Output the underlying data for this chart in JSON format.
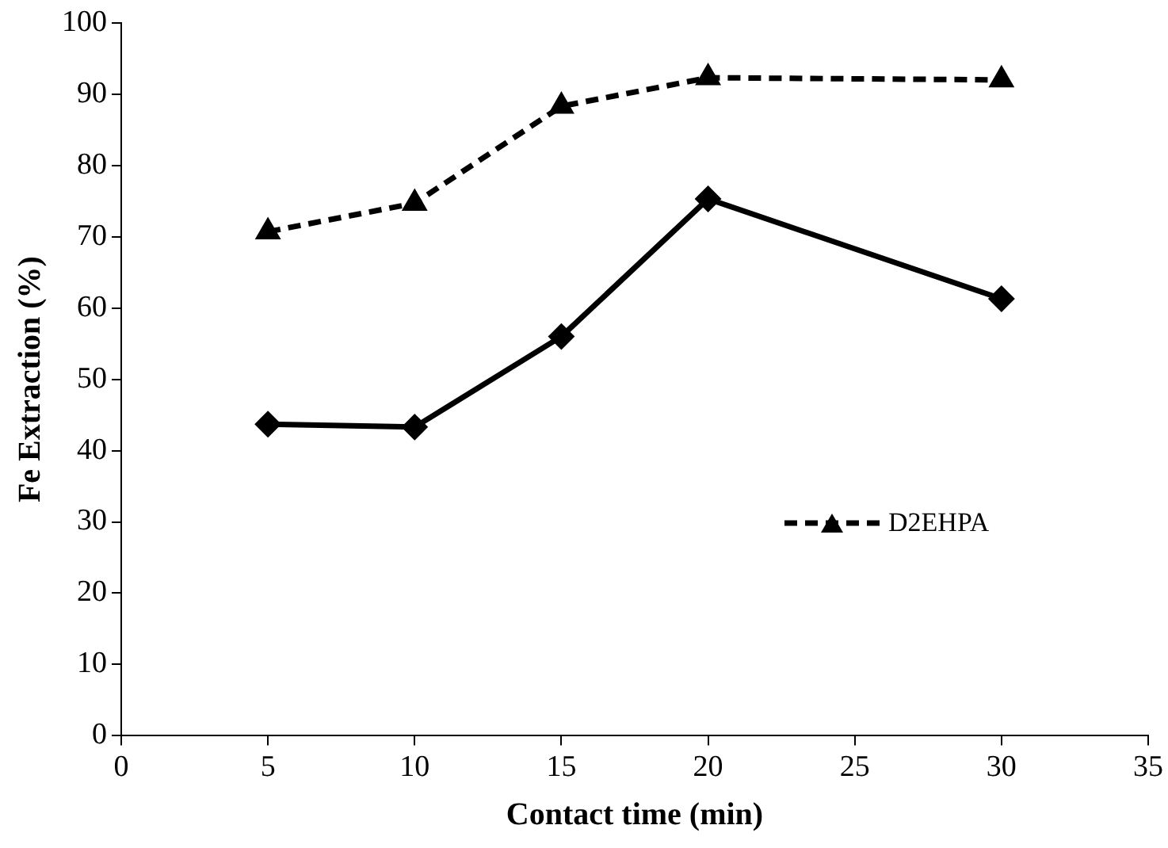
{
  "chart_data": {
    "type": "line",
    "xlabel": "Contact time (min)",
    "ylabel": "Fe Extraction (%)",
    "x": [
      5,
      10,
      15,
      20,
      30
    ],
    "series": [
      {
        "color": "#000000",
        "values": [
          43.7,
          43.3,
          56,
          75.3,
          61.3
        ],
        "marker": "diamond",
        "line_style": "solid"
      },
      {
        "name": "D2EHPA",
        "color": "#000000",
        "values": [
          70.7,
          74.7,
          88.3,
          92.3,
          92
        ],
        "marker": "triangle",
        "line_style": "dashed"
      }
    ],
    "xlim": [
      0,
      35
    ],
    "xticks": [
      0,
      5,
      10,
      15,
      20,
      25,
      30,
      35
    ],
    "ylim": [
      0,
      100
    ],
    "yticks": [
      0,
      10,
      20,
      30,
      40,
      50,
      60,
      70,
      80,
      90,
      100
    ],
    "grid": false,
    "legend": "right"
  }
}
